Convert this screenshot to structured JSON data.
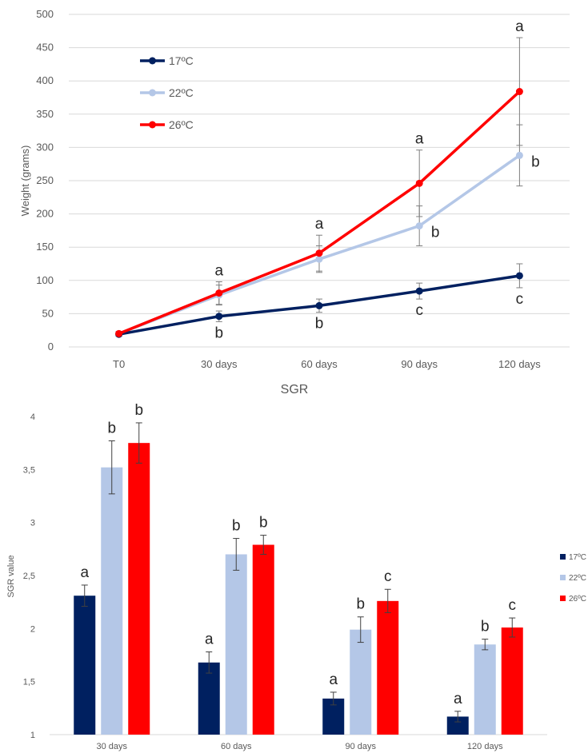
{
  "colors": {
    "t17": "#002060",
    "t22": "#b4c7e7",
    "t26": "#ff0000",
    "grid": "#d9d9d9",
    "err": "#7f7f7f"
  },
  "chart_data": [
    {
      "type": "line",
      "title": "",
      "xlabel": "",
      "ylabel": "Weight (grams)",
      "categories": [
        "T0",
        "30 days",
        "60 days",
        "90 days",
        "120 days"
      ],
      "ylim": [
        0,
        500
      ],
      "yticks": [
        "0",
        "50",
        "100",
        "150",
        "200",
        "250",
        "300",
        "350",
        "400",
        "450",
        "500"
      ],
      "grid": true,
      "legend": "top-left",
      "series": [
        {
          "name": "17ºC",
          "color": "#002060",
          "values": [
            19,
            46,
            62,
            84,
            107
          ],
          "errors": [
            3,
            8,
            10,
            12,
            18
          ],
          "letters": [
            "",
            "b",
            "b",
            "c",
            "c"
          ]
        },
        {
          "name": "22ºC",
          "color": "#b4c7e7",
          "values": [
            20,
            78,
            132,
            182,
            288
          ],
          "errors": [
            3,
            15,
            20,
            30,
            46
          ],
          "letters": [
            "",
            "",
            "",
            "b",
            "b"
          ]
        },
        {
          "name": "26ºC",
          "color": "#ff0000",
          "values": [
            20,
            81,
            141,
            246,
            384
          ],
          "errors": [
            3,
            17,
            27,
            50,
            81
          ],
          "letters": [
            "",
            "a",
            "a",
            "a",
            "a"
          ]
        }
      ]
    },
    {
      "type": "bar",
      "title": "SGR",
      "xlabel": "",
      "ylabel": "SGR value",
      "categories": [
        "30 days",
        "60 days",
        "90 days",
        "120 days"
      ],
      "ylim": [
        1,
        4
      ],
      "yticks": [
        "1",
        "1,5",
        "2",
        "2,5",
        "3",
        "3,5",
        "4"
      ],
      "grid": false,
      "legend": "right",
      "series": [
        {
          "name": "17ºC",
          "color": "#002060",
          "values": [
            2.31,
            1.68,
            1.34,
            1.17
          ],
          "errors": [
            0.1,
            0.1,
            0.06,
            0.05
          ],
          "letters": [
            "a",
            "a",
            "a",
            "a"
          ]
        },
        {
          "name": "22ºC",
          "color": "#b4c7e7",
          "values": [
            3.52,
            2.7,
            1.99,
            1.85
          ],
          "errors": [
            0.25,
            0.15,
            0.12,
            0.05
          ],
          "letters": [
            "b",
            "b",
            "b",
            "b"
          ]
        },
        {
          "name": "26ºC",
          "color": "#ff0000",
          "values": [
            3.75,
            2.79,
            2.26,
            2.01
          ],
          "errors": [
            0.19,
            0.09,
            0.11,
            0.09
          ],
          "letters": [
            "b",
            "b",
            "c",
            "c"
          ]
        }
      ]
    }
  ]
}
